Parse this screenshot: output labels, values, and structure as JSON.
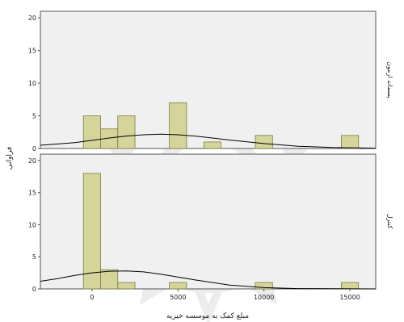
{
  "colors": {
    "plot_background": "#f0f0f0",
    "bar_fill": "#d5d59b",
    "bar_stroke": "#7a7a40",
    "curve": "#000000",
    "frame": "#555555",
    "watermark": "#9a9a9a"
  },
  "chart_data": {
    "type": "histogram",
    "title": "",
    "xlabel": "مبلغ کمک به موسسه خیریه",
    "ylabel": "فراوانی",
    "xlim": [
      -3000,
      16500
    ],
    "ylim": [
      0,
      21
    ],
    "x_ticks": [
      0,
      5000,
      10000,
      15000
    ],
    "y_ticks": [
      0,
      5,
      10,
      15,
      20
    ],
    "bin_width": 1000,
    "grid": false,
    "panels": [
      {
        "name": "پسماند ازمون",
        "bins": [
          {
            "center": 0,
            "frequency": 5
          },
          {
            "center": 1000,
            "frequency": 3
          },
          {
            "center": 2000,
            "frequency": 5
          },
          {
            "center": 5000,
            "frequency": 7
          },
          {
            "center": 7000,
            "frequency": 1
          },
          {
            "center": 10000,
            "frequency": 2
          },
          {
            "center": 15000,
            "frequency": 2
          }
        ],
        "normal_curve": {
          "x": [
            -3000,
            -1000,
            1000,
            2000,
            3000,
            4000,
            5000,
            6000,
            8000,
            10000,
            12000,
            14000,
            16500
          ],
          "y": [
            0.5,
            0.9,
            1.6,
            1.9,
            2.1,
            2.2,
            2.1,
            1.9,
            1.3,
            0.75,
            0.35,
            0.15,
            0.05
          ]
        }
      },
      {
        "name": "کنترل",
        "bins": [
          {
            "center": 0,
            "frequency": 18
          },
          {
            "center": 1000,
            "frequency": 3
          },
          {
            "center": 2000,
            "frequency": 1
          },
          {
            "center": 5000,
            "frequency": 1
          },
          {
            "center": 10000,
            "frequency": 1
          },
          {
            "center": 15000,
            "frequency": 1
          }
        ],
        "normal_curve": {
          "x": [
            -3000,
            -2000,
            -1000,
            0,
            1000,
            2000,
            3000,
            4000,
            6000,
            8000,
            10000,
            12000,
            14000,
            16500
          ],
          "y": [
            1.2,
            1.6,
            2.1,
            2.5,
            2.75,
            2.8,
            2.65,
            2.3,
            1.4,
            0.6,
            0.2,
            0.05,
            0.02,
            0.0
          ]
        }
      }
    ]
  }
}
